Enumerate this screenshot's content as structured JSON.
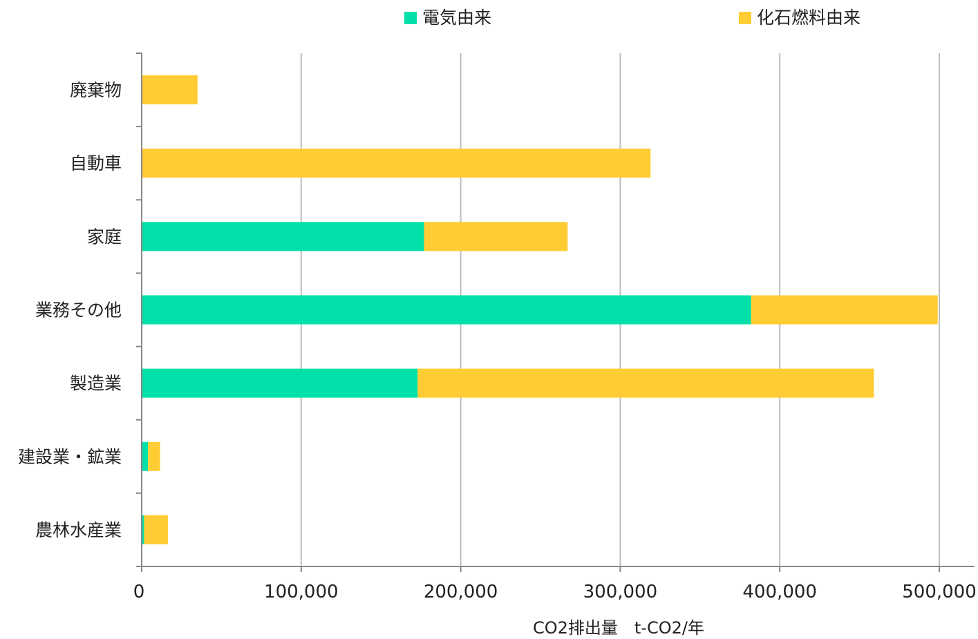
{
  "chart_data": {
    "type": "bar",
    "orientation": "horizontal",
    "stacked": true,
    "categories": [
      "廃棄物",
      "自動車",
      "家庭",
      "業務その他",
      "製造業",
      "建設業・鉱業",
      "農林水産業"
    ],
    "series": [
      {
        "name": "電気由来",
        "color": "#00E0A8",
        "values": [
          0,
          0,
          177000,
          382000,
          173000,
          4000,
          1500
        ]
      },
      {
        "name": "化石燃料由来",
        "color": "#FFCC33",
        "values": [
          35000,
          319000,
          90000,
          117000,
          286000,
          7500,
          15000
        ]
      }
    ],
    "xlabel": "CO2排出量　t-CO2/年",
    "ylabel": "",
    "xlim": [
      0,
      500000
    ],
    "xticks": [
      0,
      100000,
      200000,
      300000,
      400000,
      500000
    ],
    "xtick_labels": [
      "0",
      "100,000",
      "200,000",
      "300,000",
      "400,000",
      "500,000"
    ],
    "grid": "vertical",
    "legend_position": "top"
  }
}
